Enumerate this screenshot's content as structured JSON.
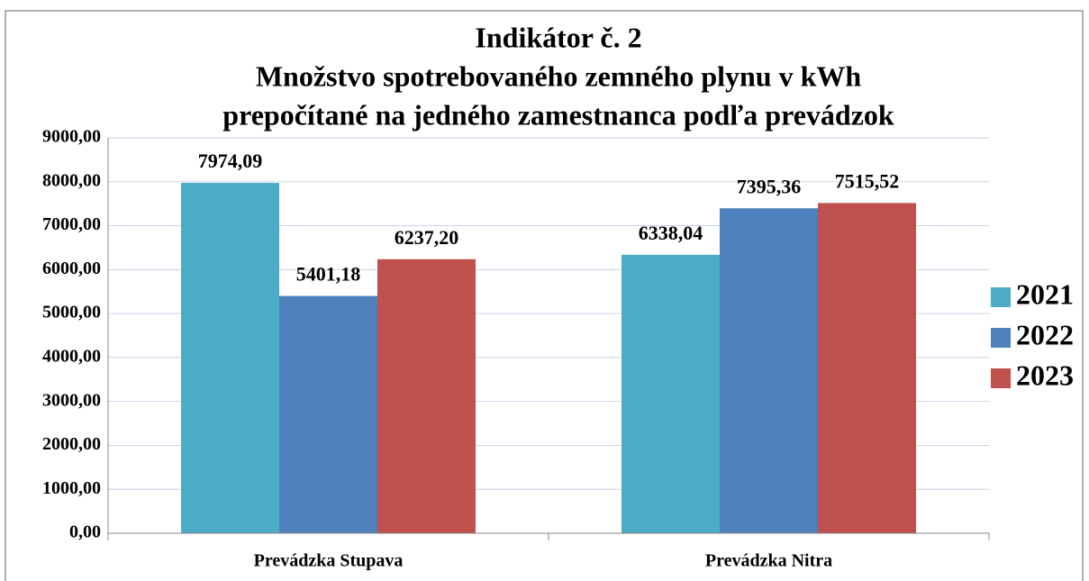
{
  "chart_data": {
    "type": "bar",
    "title": [
      "Indikátor č. 2",
      "Množstvo spotrebovaného zemného plynu v kWh",
      "prepočítané na jedného zamestnanca podľa prevádzok"
    ],
    "categories": [
      "Prevádzka Stupava",
      "Prevádzka Nitra"
    ],
    "series": [
      {
        "name": "2021",
        "color": "#4bacc6",
        "values": [
          7974.09,
          6338.04
        ],
        "value_labels": [
          "7974,09",
          "6338,04"
        ]
      },
      {
        "name": "2022",
        "color": "#4f81bd",
        "values": [
          5401.18,
          7395.36
        ],
        "value_labels": [
          "5401,18",
          "7395,36"
        ]
      },
      {
        "name": "2023",
        "color": "#c0504d",
        "values": [
          6237.2,
          7515.52
        ],
        "value_labels": [
          "6237,20",
          "7515,52"
        ]
      }
    ],
    "ylim": [
      0,
      9000
    ],
    "yticks": [
      {
        "value": 0,
        "label": "0,00"
      },
      {
        "value": 1000,
        "label": "1000,00"
      },
      {
        "value": 2000,
        "label": "2000,00"
      },
      {
        "value": 3000,
        "label": "3000,00"
      },
      {
        "value": 4000,
        "label": "4000,00"
      },
      {
        "value": 5000,
        "label": "5000,00"
      },
      {
        "value": 6000,
        "label": "6000,00"
      },
      {
        "value": 7000,
        "label": "7000,00"
      },
      {
        "value": 8000,
        "label": "8000,00"
      },
      {
        "value": 9000,
        "label": "9000,00"
      }
    ],
    "grid": true,
    "legend": "right"
  }
}
